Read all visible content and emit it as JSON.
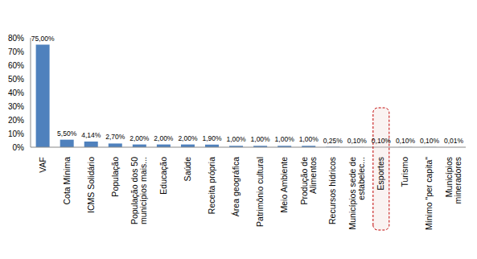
{
  "chart_data": {
    "type": "bar",
    "categories": [
      "VAF",
      "Cota Mínima",
      "ICMS Solidário",
      "População",
      "População dos 50 municípios mais...",
      "Educação",
      "Saúde",
      "Receita própria",
      "Área geográfica",
      "Patrimônio cultural",
      "Meio Ambiente",
      "Produção de Alimentos",
      "Recursos hídricos",
      "Municípios sede de estabelec...",
      "Esportes",
      "Turismo",
      "Mínimo \"per capita\"",
      "Municípios mineradores"
    ],
    "values": [
      75,
      5.5,
      4.14,
      2.7,
      2,
      2,
      2,
      1.9,
      1,
      1,
      1,
      1,
      0.25,
      0.1,
      0.1,
      0.1,
      0.1,
      0.01
    ],
    "value_labels": [
      "75,00%",
      "5,50%",
      "4,14%",
      "2,70%",
      "2,00%",
      "2,00%",
      "2,00%",
      "1,90%",
      "1,00%",
      "1,00%",
      "1,00%",
      "1,00%",
      "0,25%",
      "0,10%",
      "0,10%",
      "0,10%",
      "0,10%",
      "0,01%"
    ],
    "color": "#4f81bd",
    "ylim": [
      0,
      80
    ],
    "yticks": [
      {
        "value": 0,
        "label": "0%"
      },
      {
        "value": 10,
        "label": "10%"
      },
      {
        "value": 20,
        "label": "20%"
      },
      {
        "value": 30,
        "label": "30%"
      },
      {
        "value": 40,
        "label": "40%"
      },
      {
        "value": 50,
        "label": "50%"
      },
      {
        "value": 60,
        "label": "60%"
      },
      {
        "value": 70,
        "label": "70%"
      },
      {
        "value": 80,
        "label": "80%"
      }
    ],
    "grid": false,
    "data_labels": true
  }
}
